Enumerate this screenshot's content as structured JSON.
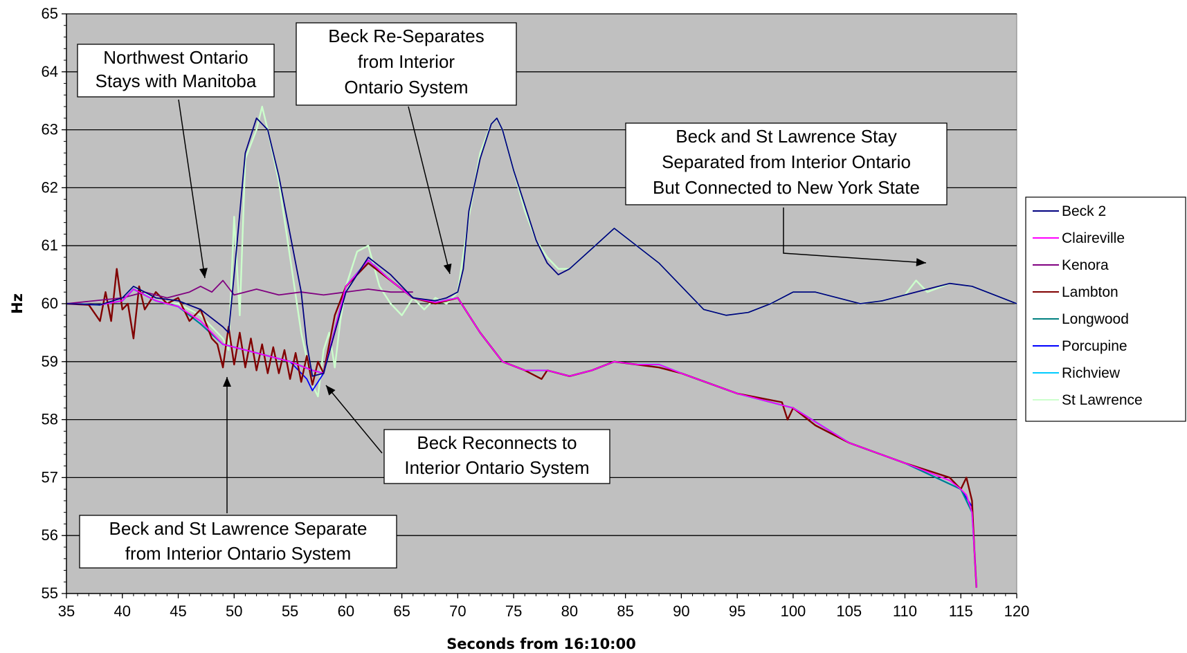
{
  "chart_data": {
    "type": "line",
    "title": "",
    "xlabel": "Seconds from 16:10:00",
    "ylabel": "Hz",
    "xlim": [
      35,
      120
    ],
    "ylim": [
      55,
      65
    ],
    "x_ticks": [
      35,
      40,
      45,
      50,
      55,
      60,
      65,
      70,
      75,
      80,
      85,
      90,
      95,
      100,
      105,
      110,
      115,
      120
    ],
    "y_ticks": [
      55,
      56,
      57,
      58,
      59,
      60,
      61,
      62,
      63,
      64,
      65
    ],
    "grid": "horizontal",
    "plot_background": "#c0c0c0",
    "legend_position": "right",
    "series": [
      {
        "name": "Beck 2",
        "color": "#00007f",
        "x": [
          35,
          38,
          40,
          41,
          43,
          45,
          47,
          49,
          49.5,
          50,
          51,
          52,
          53,
          54,
          55,
          56,
          56.5,
          57,
          58,
          60,
          62,
          64,
          66,
          68,
          69,
          70,
          70.5,
          71,
          72,
          73,
          73.5,
          74,
          75,
          77,
          78,
          79,
          80,
          82,
          84,
          86,
          88,
          90,
          92,
          94,
          96,
          98,
          100,
          102,
          104,
          106,
          108,
          110,
          112,
          114,
          116,
          118,
          120
        ],
        "y": [
          60,
          59.98,
          60.1,
          60.3,
          60.1,
          60.05,
          59.9,
          59.6,
          59.5,
          60.5,
          62.6,
          63.2,
          63.0,
          62.2,
          61.2,
          60.2,
          59.3,
          58.75,
          58.8,
          60.2,
          60.8,
          60.5,
          60.1,
          60.05,
          60.1,
          60.2,
          60.6,
          61.6,
          62.5,
          63.1,
          63.2,
          63.0,
          62.3,
          61.1,
          60.7,
          60.5,
          60.6,
          60.95,
          61.3,
          61.0,
          60.7,
          60.3,
          59.9,
          59.8,
          59.85,
          60.0,
          60.2,
          60.2,
          60.1,
          60.0,
          60.05,
          60.15,
          60.25,
          60.35,
          60.3,
          60.15,
          60.0
        ]
      },
      {
        "name": "Claireville",
        "color": "#ff00ff",
        "x": [
          35,
          38,
          40,
          41,
          43,
          45,
          47,
          49,
          51,
          53,
          55,
          57,
          58,
          60,
          62,
          64,
          66,
          68,
          70,
          72,
          74,
          76,
          78,
          80,
          82,
          84,
          86,
          88,
          90,
          95,
          100,
          105,
          110,
          112,
          114,
          115,
          115.5,
          116,
          116.2,
          116.4
        ],
        "y": [
          60,
          59.98,
          60.05,
          60.25,
          60.05,
          59.95,
          59.7,
          59.3,
          59.2,
          59.1,
          59.0,
          58.85,
          58.8,
          60.3,
          60.75,
          60.4,
          60.1,
          60.02,
          60.1,
          59.5,
          59.0,
          58.85,
          58.85,
          58.75,
          58.85,
          59.0,
          58.95,
          58.95,
          58.8,
          58.45,
          58.2,
          57.6,
          57.25,
          57.1,
          56.95,
          56.8,
          56.7,
          56.4,
          55.8,
          55.1
        ]
      },
      {
        "name": "Kenora",
        "color": "#800080",
        "x": [
          35,
          40,
          42,
          44,
          46,
          47,
          48,
          49,
          50,
          51,
          52,
          54,
          56,
          58,
          60,
          62,
          64,
          66
        ],
        "y": [
          60,
          60.1,
          60.2,
          60.1,
          60.2,
          60.3,
          60.2,
          60.4,
          60.15,
          60.2,
          60.25,
          60.15,
          60.2,
          60.15,
          60.2,
          60.25,
          60.2,
          60.2
        ]
      },
      {
        "name": "Lambton",
        "color": "#800000",
        "x": [
          35,
          37,
          38,
          38.5,
          39,
          39.5,
          40,
          40.5,
          41,
          41.5,
          42,
          43,
          44,
          45,
          46,
          47,
          48,
          48.5,
          49,
          49.5,
          50,
          50.5,
          51,
          51.5,
          52,
          52.5,
          53,
          53.5,
          54,
          54.5,
          55,
          55.5,
          56,
          56.5,
          57,
          57.5,
          58,
          59,
          60,
          62,
          64,
          66,
          68,
          70,
          72,
          74,
          76,
          77.5,
          78,
          80,
          82,
          84,
          86,
          88,
          90,
          95,
          99,
          99.5,
          100,
          102,
          105,
          110,
          114,
          115,
          115.5,
          116,
          116.2,
          116.4
        ],
        "y": [
          60,
          59.98,
          59.7,
          60.2,
          59.7,
          60.6,
          59.9,
          60.0,
          59.4,
          60.3,
          59.9,
          60.2,
          60.0,
          60.1,
          59.7,
          59.9,
          59.4,
          59.3,
          58.9,
          59.6,
          58.95,
          59.5,
          58.9,
          59.4,
          58.85,
          59.3,
          58.8,
          59.25,
          58.8,
          59.2,
          58.7,
          59.15,
          58.65,
          59.1,
          58.6,
          59.0,
          58.8,
          59.8,
          60.3,
          60.7,
          60.4,
          60.1,
          60.0,
          60.1,
          59.5,
          59.0,
          58.85,
          58.7,
          58.85,
          58.75,
          58.85,
          59.0,
          58.95,
          58.9,
          58.8,
          58.45,
          58.3,
          58.0,
          58.2,
          57.9,
          57.6,
          57.25,
          57.0,
          56.8,
          57.0,
          56.6,
          55.8,
          55.1
        ]
      },
      {
        "name": "Longwood",
        "color": "#008080",
        "x": [
          35,
          38,
          40,
          41,
          43,
          45,
          47,
          49,
          51,
          53,
          55,
          57,
          58,
          60,
          62,
          64,
          66,
          68,
          70,
          72,
          74,
          76,
          78,
          80,
          82,
          84,
          86,
          88,
          90,
          95,
          100,
          105,
          110,
          115,
          116,
          116.2,
          116.4
        ],
        "y": [
          60,
          59.98,
          60.05,
          60.25,
          60.05,
          59.95,
          59.65,
          59.3,
          59.2,
          59.1,
          59.0,
          58.85,
          58.8,
          60.3,
          60.75,
          60.4,
          60.1,
          60.02,
          60.1,
          59.5,
          59.0,
          58.85,
          58.85,
          58.75,
          58.85,
          59.0,
          58.95,
          58.95,
          58.8,
          58.45,
          58.2,
          57.6,
          57.25,
          56.8,
          56.4,
          55.8,
          55.1
        ]
      },
      {
        "name": "Porcupine",
        "color": "#0000ff",
        "x": [
          35,
          38,
          40,
          41,
          43,
          45,
          47,
          49,
          51,
          53,
          55,
          56.5,
          57,
          58,
          60,
          62,
          64,
          66,
          68,
          70,
          72,
          74,
          76,
          78,
          80,
          82,
          84,
          86,
          88,
          90,
          95,
          100,
          105,
          110,
          115,
          116,
          116.2,
          116.4
        ],
        "y": [
          60,
          59.98,
          60.05,
          60.25,
          60.05,
          59.95,
          59.65,
          59.3,
          59.2,
          59.1,
          59.0,
          58.7,
          58.5,
          58.8,
          60.3,
          60.75,
          60.4,
          60.1,
          60.02,
          60.1,
          59.5,
          59.0,
          58.85,
          58.85,
          58.75,
          58.85,
          59.0,
          58.95,
          58.9,
          58.8,
          58.45,
          58.2,
          57.6,
          57.25,
          56.8,
          56.5,
          55.8,
          55.1
        ]
      },
      {
        "name": "Richview",
        "color": "#00ccff",
        "x": [
          35,
          38,
          40,
          41,
          43,
          45,
          47,
          49,
          51,
          53,
          55,
          57,
          58,
          60,
          62,
          64,
          66,
          68,
          70,
          72,
          74,
          76,
          78,
          80,
          82,
          84,
          86,
          88,
          90,
          95,
          100,
          105,
          110,
          115,
          116,
          116.2,
          116.4
        ],
        "y": [
          60,
          59.98,
          60.05,
          60.25,
          60.05,
          59.95,
          59.65,
          59.3,
          59.2,
          59.1,
          59.0,
          58.85,
          58.8,
          60.3,
          60.75,
          60.4,
          60.1,
          60.02,
          60.1,
          59.5,
          59.0,
          58.85,
          58.85,
          58.75,
          58.85,
          59.0,
          58.95,
          58.95,
          58.8,
          58.45,
          58.2,
          57.6,
          57.25,
          56.8,
          56.4,
          55.8,
          55.1
        ]
      },
      {
        "name": "St Lawrence",
        "color": "#ccffcc",
        "x": [
          35,
          38,
          40,
          41,
          43,
          45,
          47,
          49,
          49.5,
          50,
          50.5,
          51,
          52,
          52.5,
          53,
          54,
          55,
          56,
          57,
          57.5,
          58,
          58.5,
          59,
          59.5,
          60,
          61,
          62,
          63,
          64,
          65,
          66,
          67,
          68,
          69,
          70,
          71,
          72,
          73,
          73.5,
          74,
          75,
          76,
          77,
          78,
          79,
          80,
          82,
          84,
          86,
          88,
          90,
          92,
          94,
          96,
          98,
          100,
          102,
          104,
          106,
          108,
          110,
          111,
          112,
          114,
          116,
          118,
          120
        ],
        "y": [
          60,
          59.98,
          60.1,
          60.3,
          60.05,
          60.0,
          59.8,
          59.4,
          59.2,
          61.5,
          59.8,
          62.5,
          63.0,
          63.4,
          63.0,
          62.1,
          60.8,
          59.5,
          58.6,
          58.4,
          59.2,
          59.5,
          58.9,
          59.7,
          60.3,
          60.9,
          61.0,
          60.3,
          60.0,
          59.8,
          60.1,
          59.9,
          60.1,
          60.0,
          60.2,
          61.5,
          62.6,
          63.1,
          63.2,
          63.0,
          62.3,
          61.6,
          61.1,
          60.8,
          60.6,
          60.6,
          60.95,
          61.3,
          61.0,
          60.7,
          60.3,
          59.9,
          59.8,
          59.85,
          60.0,
          60.2,
          60.2,
          60.1,
          60.0,
          60.05,
          60.15,
          60.4,
          60.2,
          60.35,
          60.3,
          60.15,
          60.0
        ]
      }
    ],
    "annotations": [
      {
        "lines": [
          "Northwest Ontario",
          "Stays with Manitoba"
        ]
      },
      {
        "lines": [
          "Beck Re-Separates",
          "from Interior",
          "Ontario System"
        ]
      },
      {
        "lines": [
          "Beck and St Lawrence Stay",
          "Separated from Interior Ontario",
          "But Connected to New York State"
        ]
      },
      {
        "lines": [
          "Beck Reconnects to",
          "Interior Ontario System"
        ]
      },
      {
        "lines": [
          "Beck and St Lawrence Separate",
          "from Interior Ontario System"
        ]
      }
    ]
  }
}
